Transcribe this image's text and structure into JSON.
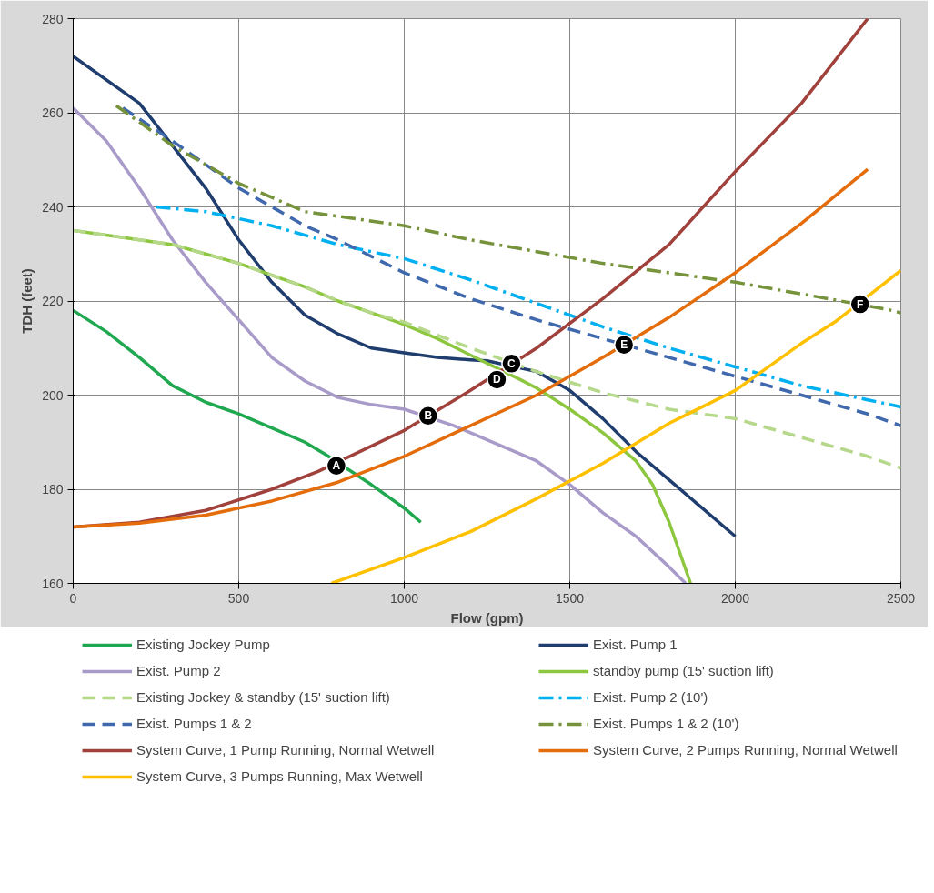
{
  "chart_data": {
    "type": "line",
    "xlabel": "Flow (gpm)",
    "ylabel": "TDH (feet)",
    "xlim": [
      0,
      2500
    ],
    "ylim": [
      160,
      280
    ],
    "xticks": [
      0,
      500,
      1000,
      1500,
      2000,
      2500
    ],
    "yticks": [
      160,
      180,
      200,
      220,
      240,
      260,
      280
    ],
    "grid": true,
    "legend": "bottom",
    "marker": "none",
    "series": [
      {
        "name": "Existing Jockey Pump",
        "color": "#1fa84f",
        "line_style": "solid",
        "x": [
          0,
          100,
          200,
          300,
          400,
          500,
          600,
          700,
          760,
          900,
          1000,
          1050
        ],
        "values": [
          218,
          213.5,
          208,
          202,
          198.5,
          196,
          193,
          190,
          187.5,
          181,
          176,
          173
        ]
      },
      {
        "name": "Exist. Pump 1",
        "color": "#1f3d6e",
        "line_style": "solid",
        "x": [
          0,
          200,
          400,
          500,
          600,
          700,
          800,
          900,
          1000,
          1100,
          1200,
          1250,
          1400,
          1500,
          1600,
          1700,
          1800,
          1900,
          2000
        ],
        "values": [
          272,
          262,
          244,
          233,
          224,
          217,
          213,
          210,
          209,
          208,
          207.5,
          207.3,
          205,
          201,
          195,
          188,
          182,
          176,
          170
        ]
      },
      {
        "name": "Exist. Pump 2",
        "color": "#a99bc9",
        "line_style": "solid",
        "x": [
          0,
          100,
          200,
          300,
          400,
          500,
          600,
          700,
          800,
          900,
          1000,
          1150,
          1200,
          1300,
          1400,
          1500,
          1600,
          1700,
          1800,
          1850
        ],
        "values": [
          261,
          254,
          244,
          233,
          224,
          216,
          208,
          203,
          199.5,
          198,
          197,
          193.5,
          192,
          189,
          186,
          181,
          175,
          170,
          163.5,
          160
        ]
      },
      {
        "name": "standby pump (15' suction lift)",
        "color": "#8dc63f",
        "line_style": "solid",
        "x": [
          0,
          200,
          300,
          400,
          500,
          600,
          700,
          800,
          900,
          1000,
          1100,
          1200,
          1350,
          1400,
          1500,
          1600,
          1700,
          1750,
          1800,
          1850,
          1865
        ],
        "values": [
          235,
          233,
          232,
          230,
          228,
          225.5,
          223,
          220,
          217.5,
          215,
          212,
          208.5,
          203.3,
          201.5,
          197,
          192,
          186,
          181,
          173,
          163,
          160
        ]
      },
      {
        "name": "Existing Jockey & standby (15' suction lift)",
        "color": "#b5d88a",
        "line_style": "dashed",
        "x": [
          0,
          200,
          300,
          400,
          500,
          600,
          700,
          800,
          900,
          1000,
          1200,
          1400,
          1600,
          1800,
          2000,
          2200,
          2400,
          2500
        ],
        "values": [
          235,
          233,
          232,
          230,
          228,
          225.5,
          223,
          220,
          217.5,
          215.5,
          210,
          205,
          200.5,
          197,
          195,
          191,
          187,
          184.5
        ]
      },
      {
        "name": "Exist. Pump 2 (10')",
        "color": "#00b0f0",
        "line_style": "dashdot",
        "x": [
          250,
          400,
          600,
          800,
          1000,
          1200,
          1400,
          1600,
          1800,
          2000,
          2200,
          2400,
          2500
        ],
        "values": [
          240,
          239,
          236,
          232,
          229,
          224.5,
          219.5,
          214.5,
          210,
          206,
          202,
          199,
          197.5
        ]
      },
      {
        "name": "Exist. Pumps 1 & 2",
        "color": "#3f68ad",
        "line_style": "dashed",
        "x": [
          150,
          300,
          500,
          700,
          800,
          1000,
          1200,
          1400,
          1600,
          1800,
          2000,
          2200,
          2400,
          2500
        ],
        "values": [
          261,
          254,
          244,
          236,
          233,
          226,
          220.5,
          216,
          212,
          208,
          204,
          200,
          196,
          193.5
        ]
      },
      {
        "name": "Exist. Pumps 1 & 2 (10')",
        "color": "#76933c",
        "line_style": "dashdot",
        "x": [
          130,
          300,
          500,
          700,
          1000,
          1200,
          1400,
          1600,
          1800,
          2000,
          2200,
          2460,
          2500
        ],
        "values": [
          261.5,
          253,
          245,
          239,
          236,
          233,
          230.5,
          228,
          226,
          224,
          221.5,
          218.2,
          217.5
        ]
      },
      {
        "name": "System Curve, 1 Pump Running, Normal Wetwell",
        "color": "#a0413c",
        "line_style": "solid",
        "x": [
          0,
          200,
          400,
          600,
          740,
          1000,
          1200,
          1400,
          1600,
          1800,
          2000,
          2200,
          2400
        ],
        "values": [
          172,
          173,
          175.5,
          180,
          183.8,
          192.5,
          201,
          210,
          220.5,
          232,
          247.5,
          262,
          280
        ]
      },
      {
        "name": "System Curve, 2 Pumps Running, Normal Wetwell",
        "color": "#e46c0a",
        "line_style": "solid",
        "x": [
          0,
          200,
          400,
          600,
          800,
          1000,
          1200,
          1400,
          1600,
          1800,
          2000,
          2200,
          2400
        ],
        "values": [
          172,
          172.8,
          174.5,
          177.5,
          181.5,
          187,
          193.5,
          200,
          208,
          216.5,
          226,
          236.5,
          248
        ]
      },
      {
        "name": "System Curve, 3 Pumps Running, Max Wetwell",
        "color": "#ffc000",
        "line_style": "solid",
        "x": [
          780,
          1000,
          1200,
          1400,
          1600,
          1800,
          2000,
          2200,
          2300,
          2500
        ],
        "values": [
          160,
          165.5,
          171,
          178,
          185.5,
          194,
          201,
          211,
          215.5,
          226.5
        ]
      }
    ],
    "annotations": [
      {
        "text": "A",
        "x": 795,
        "y": 185
      },
      {
        "text": "B",
        "x": 1072,
        "y": 195.6
      },
      {
        "text": "C",
        "x": 1324,
        "y": 206.7
      },
      {
        "text": "D",
        "x": 1280,
        "y": 203.3
      },
      {
        "text": "E",
        "x": 1664,
        "y": 210.7
      },
      {
        "text": "F",
        "x": 2377,
        "y": 219.3
      }
    ]
  }
}
